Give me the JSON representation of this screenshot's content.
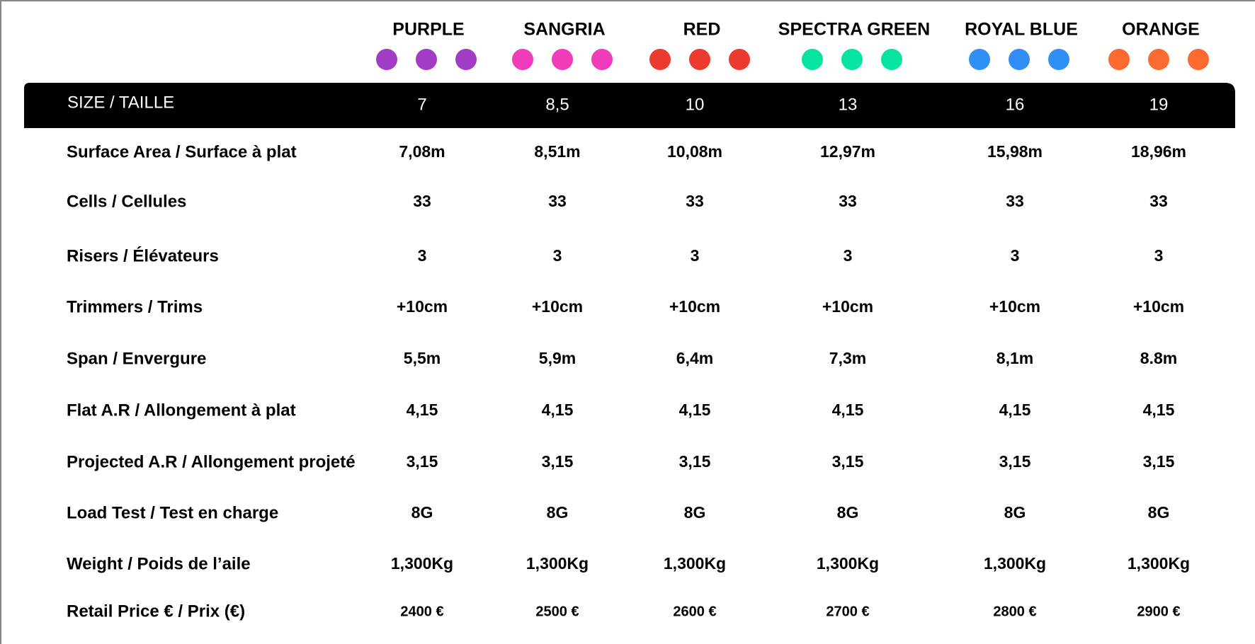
{
  "colors": [
    {
      "name": "PURPLE",
      "color": "#a23cc4"
    },
    {
      "name": "SANGRIA",
      "color": "#f03cb9"
    },
    {
      "name": "RED",
      "color": "#ec3a2e"
    },
    {
      "name": "SPECTRA GREEN",
      "color": "#06e4a2"
    },
    {
      "name": "ROYAL BLUE",
      "color": "#2f8ef3"
    },
    {
      "name": "ORANGE",
      "color": "#fb6a30"
    }
  ],
  "table": {
    "header": {
      "label": "SIZE / TAILLE",
      "sizes": [
        "7",
        "8,5",
        "10",
        "13",
        "16",
        "19"
      ]
    },
    "rows": [
      {
        "label": "Surface Area / Surface à plat",
        "values": [
          "7,08m",
          "8,51m",
          "10,08m",
          "12,97m",
          "15,98m",
          "18,96m"
        ]
      },
      {
        "label": "Cells / Cellules",
        "values": [
          "33",
          "33",
          "33",
          "33",
          "33",
          "33"
        ]
      },
      {
        "label": "Risers / Élévateurs",
        "values": [
          "3",
          "3",
          "3",
          "3",
          "3",
          "3"
        ]
      },
      {
        "label": "Trimmers / Trims",
        "values": [
          "+10cm",
          "+10cm",
          "+10cm",
          "+10cm",
          "+10cm",
          "+10cm"
        ]
      },
      {
        "label": "Span / Envergure",
        "values": [
          "5,5m",
          "5,9m",
          "6,4m",
          "7,3m",
          "8,1m",
          "8.8m"
        ]
      },
      {
        "label": "Flat A.R / Allongement à plat",
        "values": [
          "4,15",
          "4,15",
          "4,15",
          "4,15",
          "4,15",
          "4,15"
        ]
      },
      {
        "label": "Projected A.R / Allongement projeté",
        "values": [
          "3,15",
          "3,15",
          "3,15",
          "3,15",
          "3,15",
          "3,15"
        ]
      },
      {
        "label": "Load Test / Test en charge",
        "values": [
          "8G",
          "8G",
          "8G",
          "8G",
          "8G",
          "8G"
        ]
      },
      {
        "label": "Weight / Poids de l’aile",
        "values": [
          "1,300Kg",
          "1,300Kg",
          "1,300Kg",
          "1,300Kg",
          "1,300Kg",
          "1,300Kg"
        ]
      },
      {
        "label": "Retail Price € / Prix (€)",
        "values": [
          "2400 €",
          "2500 €",
          "2600 €",
          "2700 €",
          "2800 €",
          "2900 €"
        ]
      }
    ]
  }
}
